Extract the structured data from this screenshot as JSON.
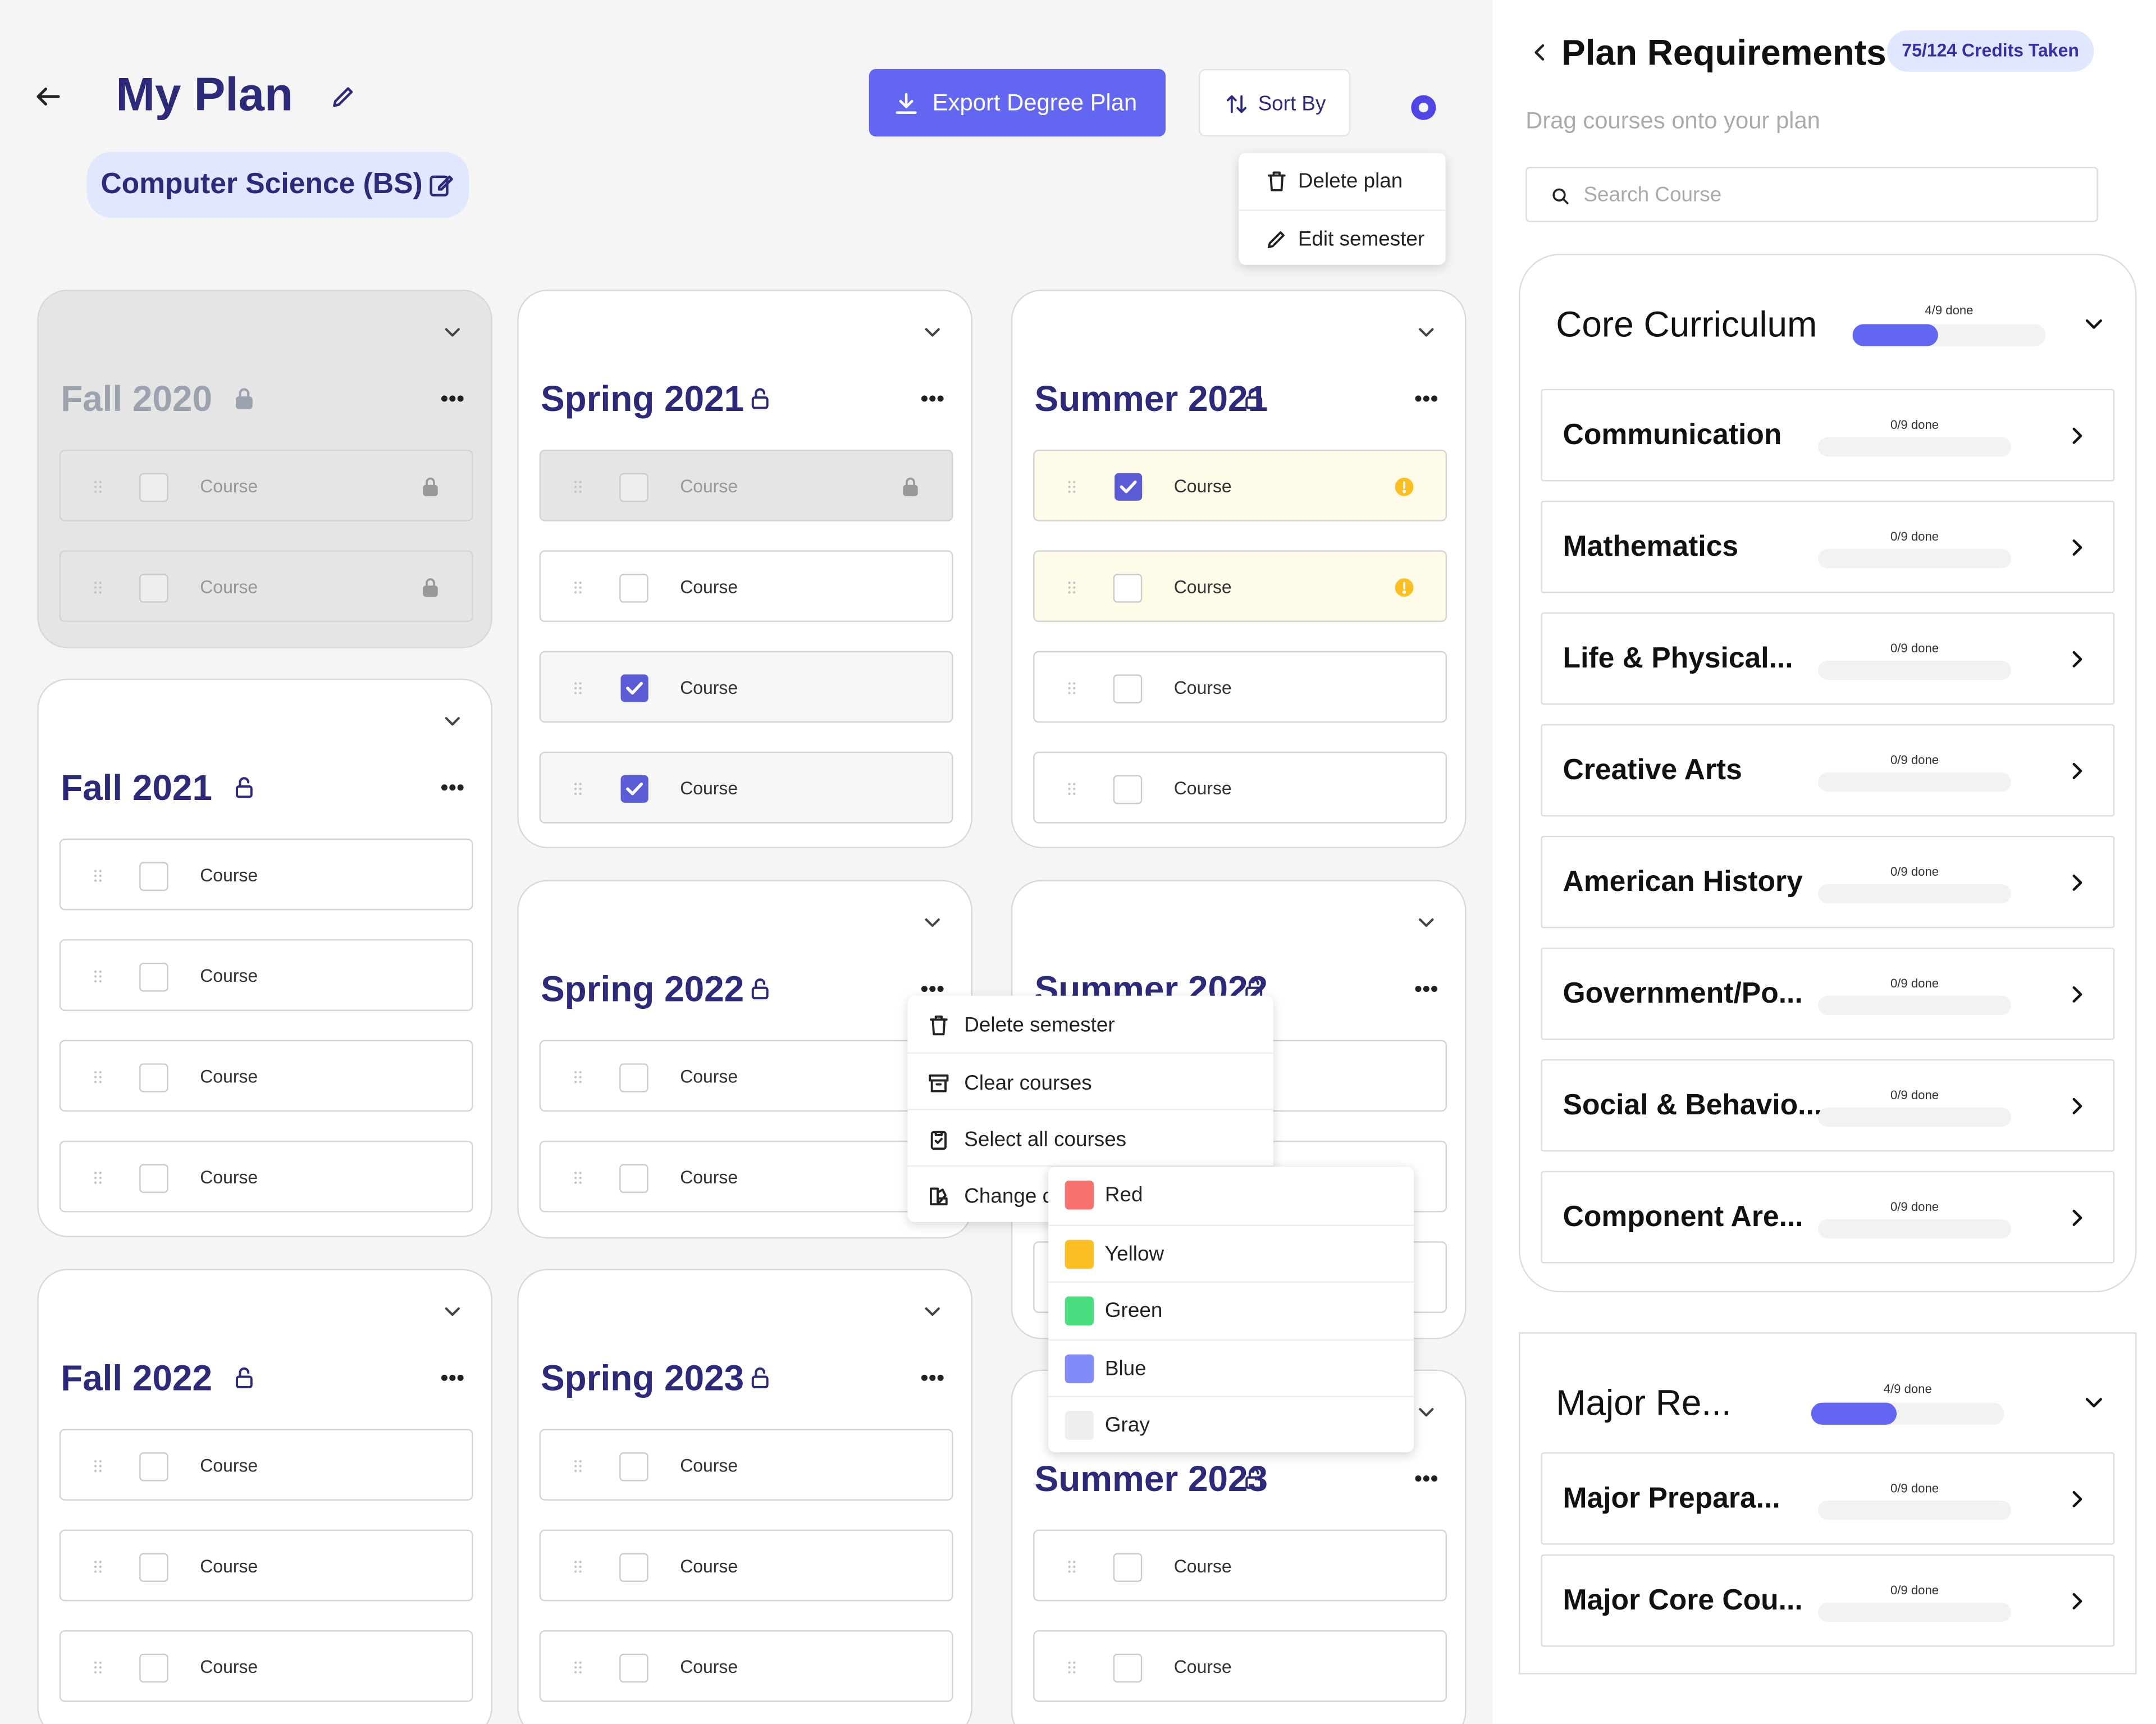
{
  "header": {
    "title": "My Plan",
    "major": "Computer Science (BS)",
    "export_button": "Export Degree Plan",
    "sort_button": "Sort By"
  },
  "plan_menu": [
    "Delete plan",
    "Edit semester"
  ],
  "semesters": [
    {
      "name": "Fall 2020",
      "locked": true,
      "courses": [
        {
          "label": "Course",
          "state": "locked"
        },
        {
          "label": "Course",
          "state": "locked"
        }
      ]
    },
    {
      "name": "Spring 2021",
      "locked": false,
      "courses": [
        {
          "label": "Course",
          "state": "locked"
        },
        {
          "label": "Course",
          "state": "normal"
        },
        {
          "label": "Course",
          "state": "checked"
        },
        {
          "label": "Course",
          "state": "checked"
        }
      ]
    },
    {
      "name": "Summer 2021",
      "locked": false,
      "courses": [
        {
          "label": "Course",
          "state": "warning-checked"
        },
        {
          "label": "Course",
          "state": "warning"
        },
        {
          "label": "Course",
          "state": "normal"
        },
        {
          "label": "Course",
          "state": "normal"
        }
      ]
    },
    {
      "name": "Fall 2021",
      "locked": false,
      "courses": [
        {
          "label": "Course",
          "state": "normal"
        },
        {
          "label": "Course",
          "state": "normal"
        },
        {
          "label": "Course",
          "state": "normal"
        },
        {
          "label": "Course",
          "state": "normal"
        }
      ]
    },
    {
      "name": "Spring 2022",
      "locked": false,
      "courses": [
        {
          "label": "Course",
          "state": "normal"
        },
        {
          "label": "Course",
          "state": "normal"
        }
      ]
    },
    {
      "name": "Summer 2022",
      "locked": false,
      "courses": [
        {
          "state": "normal"
        },
        {
          "state": "normal"
        },
        {
          "state": "normal"
        }
      ]
    },
    {
      "name": "Fall 2022",
      "locked": false,
      "courses": [
        {
          "label": "Course",
          "state": "normal"
        },
        {
          "label": "Course",
          "state": "normal"
        },
        {
          "label": "Course",
          "state": "normal"
        }
      ]
    },
    {
      "name": "Spring 2023",
      "locked": false,
      "courses": [
        {
          "label": "Course",
          "state": "normal"
        },
        {
          "label": "Course",
          "state": "normal"
        },
        {
          "label": "Course",
          "state": "normal"
        }
      ]
    },
    {
      "name": "Summer 2023",
      "locked": false,
      "courses": [
        {
          "label": "Course",
          "state": "normal"
        },
        {
          "label": "Course",
          "state": "normal"
        }
      ]
    }
  ],
  "semester_menu": [
    "Delete semester",
    "Clear courses",
    "Select all courses",
    "Change color"
  ],
  "color_menu": [
    {
      "name": "Red",
      "color": "#f87171"
    },
    {
      "name": "Yellow",
      "color": "#fbbf24"
    },
    {
      "name": "Green",
      "color": "#4ade80"
    },
    {
      "name": "Blue",
      "color": "#818cf8"
    },
    {
      "name": "Gray",
      "color": "#eeeeee"
    }
  ],
  "requirements": {
    "title": "Plan Requirements",
    "credits": "75/124 Credits Taken",
    "subtitle": "Drag courses onto your plan",
    "search_placeholder": "Search Course",
    "groups": [
      {
        "name": "Core Curriculum",
        "progress": "4/9 done",
        "done": 4,
        "total": 9,
        "items": [
          {
            "name": "Communication",
            "progress": "0/9 done",
            "done": 0,
            "total": 9
          },
          {
            "name": "Mathematics",
            "progress": "0/9 done",
            "done": 0,
            "total": 9
          },
          {
            "name": "Life & Physical...",
            "progress": "0/9 done",
            "done": 0,
            "total": 9
          },
          {
            "name": "Creative Arts",
            "progress": "0/9 done",
            "done": 0,
            "total": 9
          },
          {
            "name": "American History",
            "progress": "0/9 done",
            "done": 0,
            "total": 9
          },
          {
            "name": "Government/Po...",
            "progress": "0/9 done",
            "done": 0,
            "total": 9
          },
          {
            "name": "Social & Behavio...",
            "progress": "0/9 done",
            "done": 0,
            "total": 9
          },
          {
            "name": "Component Are...",
            "progress": "0/9 done",
            "done": 0,
            "total": 9
          }
        ]
      },
      {
        "name": "Major  Re...",
        "progress": "4/9 done",
        "done": 4,
        "total": 9,
        "items": [
          {
            "name": "Major Prepara...",
            "progress": "0/9 done",
            "done": 0,
            "total": 9
          },
          {
            "name": "Major Core Cou...",
            "progress": "0/9 done",
            "done": 0,
            "total": 9
          }
        ]
      }
    ]
  }
}
